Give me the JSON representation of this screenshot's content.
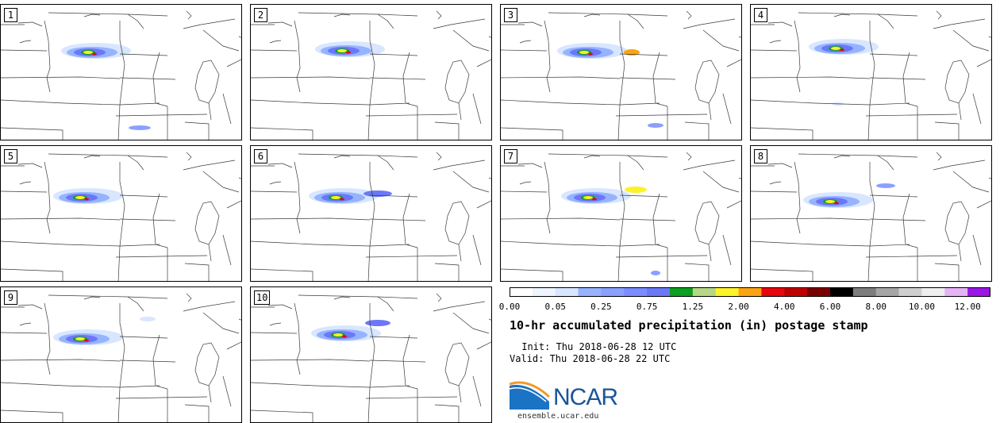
{
  "figure": {
    "title": "10-hr accumulated precipitation (in) postage stamp",
    "init": " Init: Thu 2018-06-28 12 UTC",
    "valid": "Valid: Thu 2018-06-28 22 UTC",
    "logo": "NCAR",
    "url": "ensemble.ucar.edu"
  },
  "stamps": [
    {
      "number": "1"
    },
    {
      "number": "2"
    },
    {
      "number": "3"
    },
    {
      "number": "4"
    },
    {
      "number": "5"
    },
    {
      "number": "6"
    },
    {
      "number": "7"
    },
    {
      "number": "8"
    },
    {
      "number": "9"
    },
    {
      "number": "10"
    }
  ],
  "colorbar": {
    "colors": [
      "#ffffff",
      "#eef5ff",
      "#d8e6ff",
      "#96b3ff",
      "#8aa0ff",
      "#7a8cff",
      "#6a78f8",
      "#0ca020",
      "#b5d786",
      "#fcf22a",
      "#fba314",
      "#e8070d",
      "#c00000",
      "#7a0000",
      "#000000",
      "#7d7d7d",
      "#a6a6a6",
      "#cfcfcf",
      "#efefef",
      "#e4b4f4",
      "#9b17e6"
    ],
    "labels": [
      "0.00",
      "0.05",
      "0.25",
      "0.75",
      "1.25",
      "2.00",
      "4.00",
      "6.00",
      "8.00",
      "10.00",
      "12.00"
    ]
  }
}
